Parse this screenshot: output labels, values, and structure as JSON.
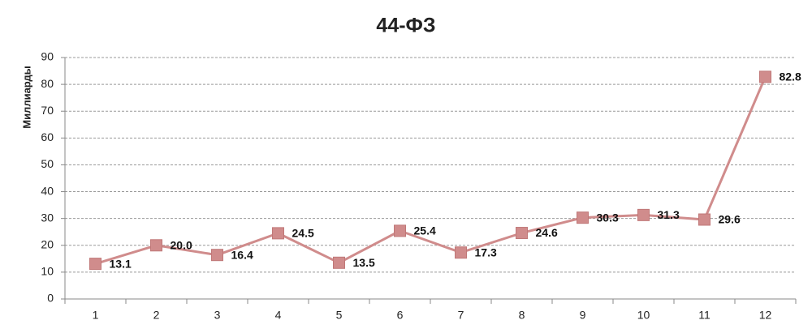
{
  "chart_data": {
    "type": "line",
    "title": "44-ФЗ",
    "y_label": "Миллиарды",
    "categories": [
      "1",
      "2",
      "3",
      "4",
      "5",
      "6",
      "7",
      "8",
      "9",
      "10",
      "11",
      "12"
    ],
    "values": [
      13.1,
      20.0,
      16.4,
      24.5,
      13.5,
      25.4,
      17.3,
      24.6,
      30.3,
      31.3,
      29.6,
      82.8
    ],
    "value_labels": [
      "13.1",
      "20.0",
      "16.4",
      "24.5",
      "13.5",
      "25.4",
      "17.3",
      "24.6",
      "30.3",
      "31.3",
      "29.6",
      "82.8"
    ],
    "color": "#d08c8c",
    "ylim": [
      0,
      90
    ],
    "yticks": [
      0,
      10,
      20,
      30,
      40,
      50,
      60,
      70,
      80,
      90
    ],
    "grid": true
  }
}
